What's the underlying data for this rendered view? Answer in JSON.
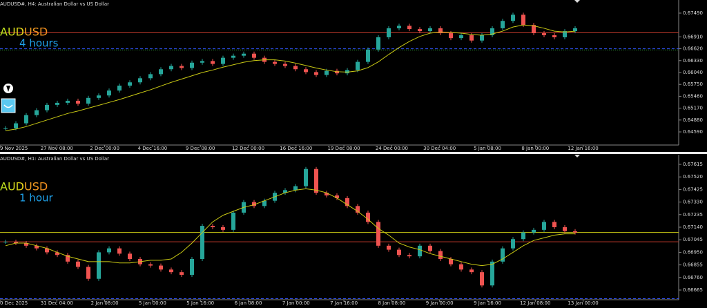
{
  "chart_data": [
    {
      "type": "candlestick",
      "title": "AUDUSD#, H4:  Australian Dollar vs US Dollar",
      "symbol": "AUDUSD",
      "timeframe": "4 hours",
      "up_color": "#26a69a",
      "down_color": "#ef5350",
      "ma_color": "#c9c914",
      "ylim": [
        0.6427,
        0.6781
      ],
      "yticks": [
        {
          "value": 0.6749,
          "label": "0.67490"
        },
        {
          "value": 0.6691,
          "label": "0.66910"
        },
        {
          "value": 0.6662,
          "label": "0.66620"
        },
        {
          "value": 0.6633,
          "label": "0.66330"
        },
        {
          "value": 0.6604,
          "label": "0.66040"
        },
        {
          "value": 0.6575,
          "label": "0.65750"
        },
        {
          "value": 0.6546,
          "label": "0.65460"
        },
        {
          "value": 0.6517,
          "label": "0.65170"
        },
        {
          "value": 0.6488,
          "label": "0.64880"
        },
        {
          "value": 0.6459,
          "label": "0.64590"
        }
      ],
      "time_labels": [
        "9 Nov 2025",
        "27 Nov 08:00",
        "2 Dec 00:00",
        "4 Dec 16:00",
        "9 Dec 08:00",
        "12 Dec 00:00",
        "16 Dec 16:00",
        "19 Dec 08:00",
        "24 Dec 00:00",
        "30 Dec 04:00",
        "5 Jan 08:00",
        "8 Jan 00:00",
        "12 Jan 16:00"
      ],
      "levels": [
        {
          "value": 0.6701,
          "color": "#c0392b",
          "style": "solid"
        },
        {
          "value": 0.6662,
          "color": "#3355ff",
          "style": "dashed"
        },
        {
          "value": 0.6659,
          "color": "#2e9b2e",
          "style": "dotted"
        }
      ],
      "closes": [
        0.6468,
        0.648,
        0.65,
        0.6512,
        0.6525,
        0.653,
        0.6535,
        0.6528,
        0.6542,
        0.6548,
        0.656,
        0.6572,
        0.658,
        0.659,
        0.66,
        0.6612,
        0.662,
        0.6615,
        0.6628,
        0.6632,
        0.6625,
        0.664,
        0.6645,
        0.665,
        0.664,
        0.663,
        0.6625,
        0.662,
        0.6612,
        0.6605,
        0.6598,
        0.6608,
        0.6602,
        0.661,
        0.663,
        0.666,
        0.669,
        0.6712,
        0.6718,
        0.671,
        0.6705,
        0.6712,
        0.67,
        0.6688,
        0.6695,
        0.6682,
        0.6695,
        0.6712,
        0.673,
        0.6745,
        0.672,
        0.67,
        0.6695,
        0.669,
        0.6705,
        0.6712
      ],
      "ma": [
        0.6462,
        0.6466,
        0.6472,
        0.648,
        0.6488,
        0.6496,
        0.6504,
        0.651,
        0.6517,
        0.6524,
        0.6531,
        0.6538,
        0.6546,
        0.6554,
        0.6562,
        0.6571,
        0.658,
        0.6588,
        0.6596,
        0.6604,
        0.661,
        0.6617,
        0.6623,
        0.6629,
        0.6633,
        0.6635,
        0.6635,
        0.6632,
        0.6627,
        0.6621,
        0.6615,
        0.661,
        0.6606,
        0.6605,
        0.6608,
        0.6616,
        0.663,
        0.6648,
        0.6665,
        0.668,
        0.6692,
        0.67,
        0.6703,
        0.6702,
        0.67,
        0.6697,
        0.6695,
        0.6698,
        0.6705,
        0.6715,
        0.672,
        0.6718,
        0.6712,
        0.6705,
        0.6703,
        0.6705
      ]
    },
    {
      "type": "candlestick",
      "title": "AUDUSD#, H1:  Australian Dollar vs US Dollar",
      "symbol": "AUDUSD",
      "timeframe": "1 hour",
      "up_color": "#26a69a",
      "down_color": "#ef5350",
      "ma_color": "#c9c914",
      "ylim": [
        0.66592,
        0.67688
      ],
      "yticks": [
        {
          "value": 0.67615,
          "label": "0.67615"
        },
        {
          "value": 0.6752,
          "label": "0.67520"
        },
        {
          "value": 0.67425,
          "label": "0.67425"
        },
        {
          "value": 0.6733,
          "label": "0.67330"
        },
        {
          "value": 0.67235,
          "label": "0.67235"
        },
        {
          "value": 0.6714,
          "label": "0.67140"
        },
        {
          "value": 0.67045,
          "label": "0.67045"
        },
        {
          "value": 0.6695,
          "label": "0.66950"
        },
        {
          "value": 0.66855,
          "label": "0.66855"
        },
        {
          "value": 0.6676,
          "label": "0.66760"
        },
        {
          "value": 0.66665,
          "label": "0.66665"
        }
      ],
      "time_labels": [
        "0 Dec 2025",
        "31 Dec 04:00",
        "2 Jan 08:00",
        "5 Jan 00:00",
        "5 Jan 16:00",
        "6 Jan 08:00",
        "7 Jan 00:00",
        "7 Jan 16:00",
        "8 Jan 08:00",
        "9 Jan 00:00",
        "9 Jan 16:00",
        "12 Jan 08:00",
        "13 Jan 00:00"
      ],
      "levels": [
        {
          "value": 0.671,
          "color": "#c9c914",
          "style": "solid"
        },
        {
          "value": 0.6703,
          "color": "#c0392b",
          "style": "solid"
        },
        {
          "value": 0.666,
          "color": "#3355ff",
          "style": "dashed"
        }
      ],
      "closes": [
        0.6703,
        0.6702,
        0.67,
        0.6698,
        0.6695,
        0.6693,
        0.6688,
        0.6684,
        0.6675,
        0.6695,
        0.6698,
        0.6694,
        0.669,
        0.6686,
        0.6685,
        0.6682,
        0.668,
        0.6678,
        0.669,
        0.6715,
        0.6714,
        0.6712,
        0.6725,
        0.6733,
        0.673,
        0.6734,
        0.674,
        0.6742,
        0.6745,
        0.6758,
        0.674,
        0.6738,
        0.6736,
        0.673,
        0.6725,
        0.6718,
        0.67,
        0.6697,
        0.6693,
        0.6692,
        0.67,
        0.6696,
        0.669,
        0.6686,
        0.6682,
        0.668,
        0.667,
        0.6688,
        0.6698,
        0.6705,
        0.671,
        0.6712,
        0.6718,
        0.6714,
        0.6711,
        0.671
      ],
      "ma": [
        0.67,
        0.6702,
        0.6702,
        0.67,
        0.6698,
        0.6695,
        0.6692,
        0.669,
        0.6688,
        0.6688,
        0.6688,
        0.6687,
        0.6687,
        0.6688,
        0.6689,
        0.6689,
        0.669,
        0.6695,
        0.6702,
        0.671,
        0.6718,
        0.6723,
        0.6726,
        0.6729,
        0.6731,
        0.6734,
        0.6737,
        0.674,
        0.6742,
        0.6743,
        0.6742,
        0.674,
        0.6736,
        0.6731,
        0.6726,
        0.672,
        0.6713,
        0.6708,
        0.6702,
        0.6699,
        0.6697,
        0.6694,
        0.6692,
        0.669,
        0.6688,
        0.6686,
        0.6685,
        0.6686,
        0.669,
        0.6695,
        0.67,
        0.6704,
        0.6706,
        0.6708,
        0.6709,
        0.6709
      ]
    }
  ]
}
